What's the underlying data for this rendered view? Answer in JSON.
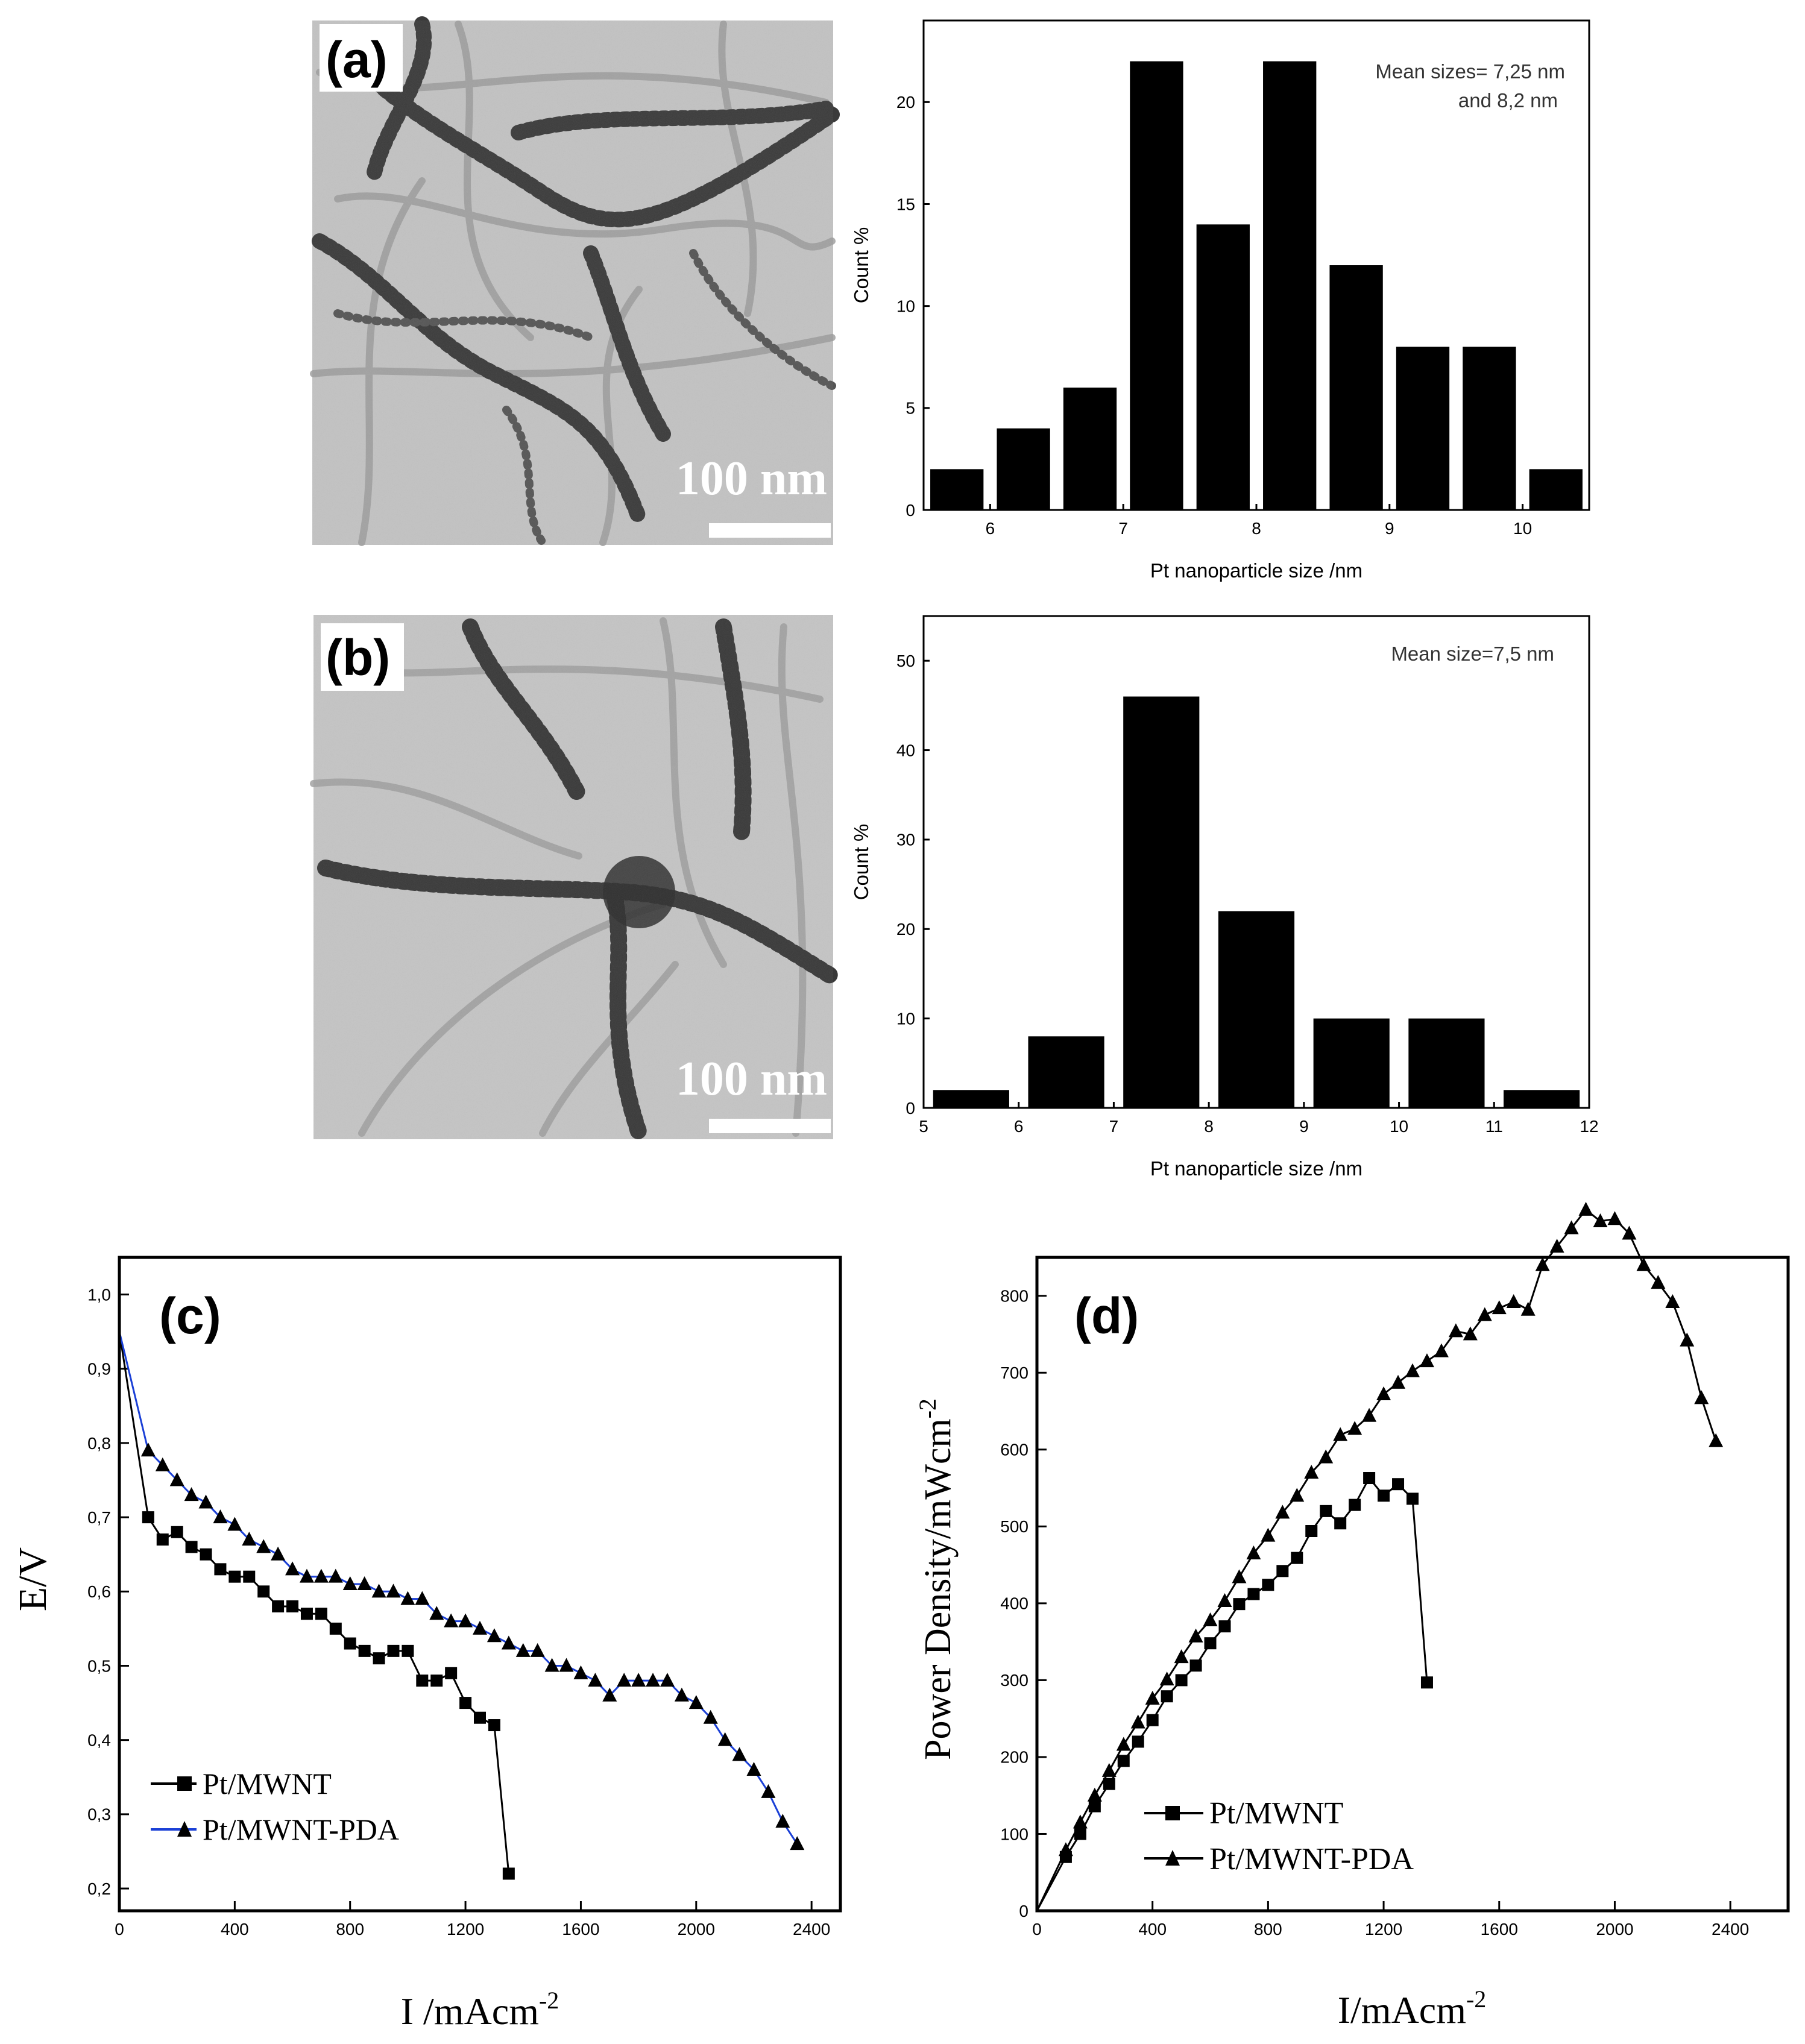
{
  "colors": {
    "bar": "#000000",
    "axis": "#000000",
    "series_pda_line": "#1a3fd6",
    "series_mwnt_line": "#000000",
    "tem_background": "#bdbdbd"
  },
  "chart_data": [
    {
      "id": "a",
      "type": "bar",
      "panel_label": "(a)",
      "image_scale_label": "100 nm",
      "annotation": [
        "Mean sizes= 7,25 nm",
        "and 8,2 nm"
      ],
      "xlabel": "Pt nanoparticle size /nm",
      "ylabel": "Count %",
      "xlim": [
        5.5,
        10.5
      ],
      "ylim": [
        0,
        24
      ],
      "xticks": [
        6,
        7,
        8,
        9,
        10
      ],
      "yticks": [
        0,
        5,
        10,
        15,
        20
      ],
      "bar_width": 0.4,
      "x": [
        5.75,
        6.25,
        6.75,
        7.25,
        7.75,
        8.25,
        8.75,
        9.25,
        9.75,
        10.25
      ],
      "values": [
        2,
        4,
        6,
        22,
        14,
        22,
        12,
        8,
        8,
        2
      ]
    },
    {
      "id": "b",
      "type": "bar",
      "panel_label": "(b)",
      "image_scale_label": "100 nm",
      "annotation": [
        "Mean size=7,5 nm"
      ],
      "xlabel": "Pt nanoparticle size /nm",
      "ylabel": "Count %",
      "xlim": [
        5,
        12
      ],
      "ylim": [
        0,
        55
      ],
      "xticks": [
        5,
        6,
        7,
        8,
        9,
        10,
        11,
        12
      ],
      "yticks": [
        0,
        10,
        20,
        30,
        40,
        50
      ],
      "bar_width": 0.8,
      "x": [
        5.5,
        6.5,
        7.5,
        8.5,
        9.5,
        10.5,
        11.5
      ],
      "values": [
        2,
        8,
        46,
        22,
        10,
        10,
        2
      ]
    },
    {
      "id": "c",
      "type": "line",
      "panel_label": "(c)",
      "xlabel": "I /mAcm",
      "xlabel_sup": "-2",
      "ylabel": "E/V",
      "xlim": [
        0,
        2500
      ],
      "ylim": [
        0.17,
        1.05
      ],
      "xticks": [
        0,
        400,
        800,
        1200,
        1600,
        2000,
        2400
      ],
      "yticks": [
        0.2,
        0.3,
        0.4,
        0.5,
        0.6,
        0.7,
        0.8,
        0.9,
        1.0
      ],
      "ytick_labels": [
        "0,2",
        "0,3",
        "0,4",
        "0,5",
        "0,6",
        "0,7",
        "0,8",
        "0,9",
        "1,0"
      ],
      "series": [
        {
          "name": "Pt/MWNT",
          "marker": "square",
          "x": [
            0,
            100,
            150,
            200,
            250,
            300,
            350,
            400,
            450,
            500,
            550,
            600,
            650,
            700,
            750,
            800,
            850,
            900,
            950,
            1000,
            1050,
            1100,
            1150,
            1200,
            1250,
            1300,
            1350
          ],
          "y": [
            0.95,
            0.7,
            0.67,
            0.68,
            0.66,
            0.65,
            0.63,
            0.62,
            0.62,
            0.6,
            0.58,
            0.58,
            0.57,
            0.57,
            0.55,
            0.53,
            0.52,
            0.51,
            0.52,
            0.52,
            0.48,
            0.48,
            0.49,
            0.45,
            0.43,
            0.42,
            0.22
          ]
        },
        {
          "name": "Pt/MWNT-PDA",
          "marker": "triangle",
          "x": [
            0,
            100,
            150,
            200,
            250,
            300,
            350,
            400,
            450,
            500,
            550,
            600,
            650,
            700,
            750,
            800,
            850,
            900,
            950,
            1000,
            1050,
            1100,
            1150,
            1200,
            1250,
            1300,
            1350,
            1400,
            1450,
            1500,
            1550,
            1600,
            1650,
            1700,
            1750,
            1800,
            1850,
            1900,
            1950,
            2000,
            2050,
            2100,
            2150,
            2200,
            2250,
            2300,
            2350
          ],
          "y": [
            0.95,
            0.79,
            0.77,
            0.75,
            0.73,
            0.72,
            0.7,
            0.69,
            0.67,
            0.66,
            0.65,
            0.63,
            0.62,
            0.62,
            0.62,
            0.61,
            0.61,
            0.6,
            0.6,
            0.59,
            0.59,
            0.57,
            0.56,
            0.56,
            0.55,
            0.54,
            0.53,
            0.52,
            0.52,
            0.5,
            0.5,
            0.49,
            0.48,
            0.46,
            0.48,
            0.48,
            0.48,
            0.48,
            0.46,
            0.45,
            0.43,
            0.4,
            0.38,
            0.36,
            0.33,
            0.29,
            0.26
          ]
        }
      ]
    },
    {
      "id": "d",
      "type": "line",
      "panel_label": "(d)",
      "xlabel": "I/mAcm",
      "xlabel_sup": "-2",
      "ylabel": "Power Density/mWcm",
      "ylabel_sup": "-2",
      "xlim": [
        0,
        2600
      ],
      "ylim": [
        0,
        850
      ],
      "xticks": [
        0,
        400,
        800,
        1200,
        1600,
        2000,
        2400
      ],
      "yticks": [
        0,
        100,
        200,
        300,
        400,
        500,
        600,
        700,
        800
      ],
      "series": [
        {
          "name": "Pt/MWNT",
          "marker": "square",
          "x": [
            0,
            100,
            150,
            200,
            250,
            300,
            350,
            400,
            450,
            500,
            550,
            600,
            650,
            700,
            750,
            800,
            850,
            900,
            950,
            1000,
            1050,
            1100,
            1150,
            1200,
            1250,
            1300,
            1350
          ],
          "y": [
            0,
            70,
            100,
            136,
            165,
            195,
            220,
            248,
            279,
            300,
            319,
            348,
            370,
            399,
            412,
            424,
            442,
            459,
            494,
            520,
            504,
            528,
            563,
            540,
            555,
            536,
            297
          ]
        },
        {
          "name": "Pt/MWNT-PDA",
          "marker": "triangle",
          "x": [
            0,
            100,
            150,
            200,
            250,
            300,
            350,
            400,
            450,
            500,
            550,
            600,
            650,
            700,
            750,
            800,
            850,
            900,
            950,
            1000,
            1050,
            1100,
            1150,
            1200,
            1250,
            1300,
            1350,
            1400,
            1450,
            1500,
            1550,
            1600,
            1650,
            1700,
            1750,
            1800,
            1850,
            1900,
            1950,
            2000,
            2050,
            2100,
            2150,
            2200,
            2250,
            2300,
            2350
          ],
          "y": [
            0,
            79,
            115,
            150,
            182,
            216,
            245,
            276,
            301,
            330,
            357,
            378,
            403,
            434,
            465,
            488,
            518,
            540,
            570,
            590,
            619,
            627,
            644,
            672,
            687,
            702,
            715,
            728,
            754,
            750,
            775,
            784,
            792,
            782,
            840,
            864,
            888,
            912,
            897,
            900,
            881,
            840,
            817,
            792,
            742,
            667,
            611
          ]
        }
      ]
    }
  ]
}
